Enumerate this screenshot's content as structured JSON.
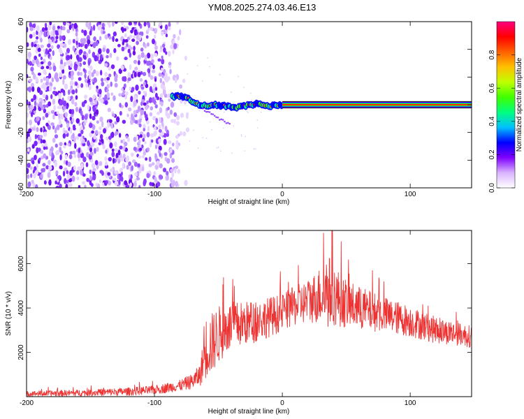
{
  "title": "YM08.2025.274.03.46.E13",
  "chart_data": [
    {
      "type": "heatmap",
      "title": "YM08.2025.274.03.46.E13",
      "xlabel": "Height of straight line (km)",
      "ylabel": "Frequency (Hz)",
      "xlim": [
        -200,
        148
      ],
      "ylim": [
        -60,
        60
      ],
      "xticks": [
        -200,
        -100,
        0,
        100
      ],
      "yticks": [
        -60,
        -40,
        -20,
        0,
        20,
        40,
        60
      ],
      "colorbar": {
        "label": "Normalized spectral amplitude",
        "range": [
          0,
          1
        ],
        "ticks": [
          0.0,
          0.2,
          0.4,
          0.6,
          0.8
        ],
        "colormap": [
          "#ffffff",
          "#d9b3ff",
          "#8000ff",
          "#0000ff",
          "#00c0ff",
          "#00ff80",
          "#40ff00",
          "#c0ff00",
          "#ffc000",
          "#ff6000",
          "#ff0000",
          "#ff0080"
        ]
      },
      "regions": [
        {
          "name": "noise",
          "x_range": [
            -200,
            -75
          ],
          "freq_range": [
            -60,
            60
          ]
        },
        {
          "name": "transition",
          "x_range": [
            -85,
            0
          ],
          "freq_track": [
            [
              -85,
              6
            ],
            [
              -75,
              6
            ],
            [
              -70,
              2
            ],
            [
              -62,
              -1
            ],
            [
              -55,
              0
            ],
            [
              -45,
              -1
            ],
            [
              -35,
              -2
            ],
            [
              -25,
              0
            ],
            [
              -18,
              1
            ],
            [
              -10,
              -1
            ],
            [
              0,
              0
            ]
          ]
        },
        {
          "name": "carrier",
          "x_range": [
            0,
            148
          ],
          "freq": 0,
          "amplitude": 1.0
        }
      ]
    },
    {
      "type": "line",
      "xlabel": "Height of straight line (km)",
      "ylabel": "SNR (10 * v/v)",
      "xlim": [
        -200,
        148
      ],
      "ylim": [
        0,
        7500
      ],
      "xticks": [
        -200,
        -100,
        0,
        100
      ],
      "yticks": [
        2000,
        4000,
        6000
      ],
      "color": "#ee3333",
      "envelope": {
        "x": [
          -200,
          -150,
          -120,
          -100,
          -80,
          -70,
          -64,
          -60,
          -55,
          -50,
          -45,
          -40,
          -30,
          -20,
          -10,
          0,
          10,
          20,
          30,
          35,
          40,
          50,
          60,
          80,
          100,
          120,
          140,
          148
        ],
        "mean": [
          130,
          180,
          230,
          300,
          500,
          700,
          1000,
          2200,
          2400,
          2800,
          3000,
          3200,
          3300,
          3400,
          3600,
          3800,
          4100,
          4300,
          4600,
          4800,
          4600,
          4200,
          4000,
          3700,
          3400,
          3000,
          2800,
          2700
        ],
        "amp": [
          120,
          150,
          180,
          200,
          250,
          350,
          500,
          1400,
          1400,
          1300,
          1200,
          1100,
          1000,
          950,
          900,
          850,
          900,
          1000,
          1300,
          1800,
          1400,
          1100,
          1000,
          800,
          700,
          600,
          500,
          500
        ]
      }
    }
  ]
}
